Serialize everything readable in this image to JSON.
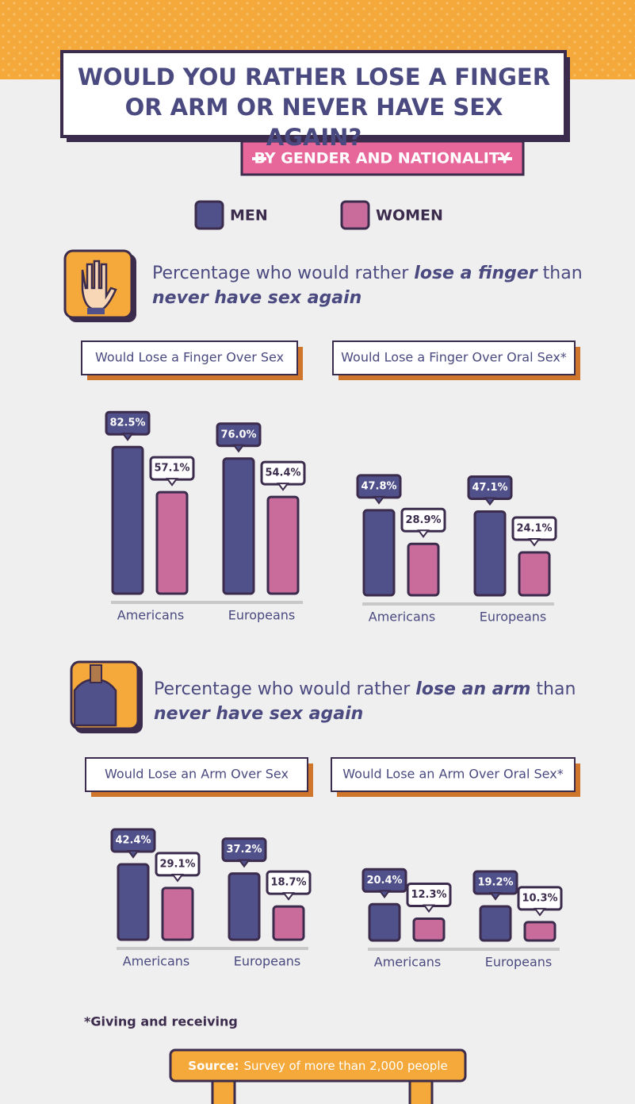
{
  "header": {
    "title": "WOULD YOU RATHER LOSE A FINGER OR ARM OR NEVER HAVE SEX AGAIN?",
    "subtitle": "BY GENDER AND NATIONALITY"
  },
  "sections": [
    {
      "heading": [
        "Percentage who would rather",
        "lose a finger",
        "than",
        "never have sex again"
      ]
    },
    {
      "heading": [
        "Percentage who would rather",
        "lose an arm",
        "than",
        "never have sex again"
      ]
    }
  ],
  "chart_data": [
    {
      "type": "bar",
      "title": "Would Lose a Finger Over Sex",
      "categories": [
        "Americans",
        "Europeans"
      ],
      "series": [
        {
          "name": "MEN",
          "color": "#50508a",
          "values": [
            82.5,
            76.0
          ],
          "value_labels": [
            "82.5%",
            "76.0%"
          ]
        },
        {
          "name": "WOMEN",
          "color": "#c96c9c",
          "values": [
            57.1,
            54.4
          ],
          "value_labels": [
            "57.1%",
            "54.4%"
          ]
        }
      ]
    },
    {
      "type": "bar",
      "title": "Would Lose a Finger Over Oral Sex*",
      "categories": [
        "Americans",
        "Europeans"
      ],
      "series": [
        {
          "name": "MEN",
          "color": "#50508a",
          "values": [
            47.8,
            47.1
          ],
          "value_labels": [
            "47.8%",
            "47.1%"
          ]
        },
        {
          "name": "WOMEN",
          "color": "#c96c9c",
          "values": [
            28.9,
            24.1
          ],
          "value_labels": [
            "28.9%",
            "24.1%"
          ]
        }
      ]
    },
    {
      "type": "bar",
      "title": "Would Lose an Arm Over Sex",
      "categories": [
        "Americans",
        "Europeans"
      ],
      "series": [
        {
          "name": "MEN",
          "color": "#50508a",
          "values": [
            42.4,
            37.2
          ],
          "value_labels": [
            "42.4%",
            "37.2%"
          ]
        },
        {
          "name": "WOMEN",
          "color": "#c96c9c",
          "values": [
            29.1,
            18.7
          ],
          "value_labels": [
            "29.1%",
            "18.7%"
          ]
        }
      ]
    },
    {
      "type": "bar",
      "title": "Would Lose an Arm Over Oral Sex*",
      "categories": [
        "Americans",
        "Europeans"
      ],
      "series": [
        {
          "name": "MEN",
          "color": "#50508a",
          "values": [
            20.4,
            19.2
          ],
          "value_labels": [
            "20.4%",
            "19.2%"
          ]
        },
        {
          "name": "WOMEN",
          "color": "#c96c9c",
          "values": [
            12.3,
            10.3
          ],
          "value_labels": [
            "12.3%",
            "10.3%"
          ]
        }
      ]
    }
  ],
  "footnote": "*Giving and receiving",
  "source": {
    "label": "Source:",
    "text": "Survey of more than 2,000 people"
  }
}
